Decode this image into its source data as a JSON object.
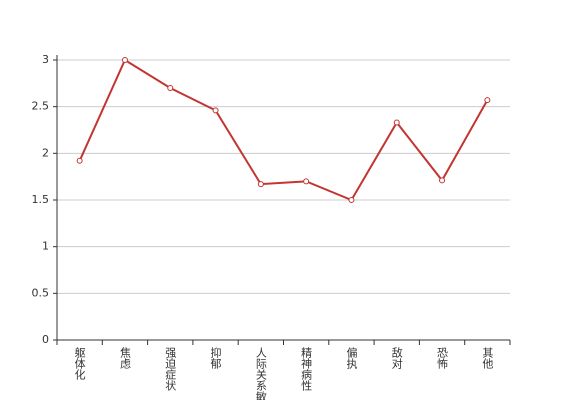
{
  "chart_data": {
    "type": "line",
    "categories": [
      "躯体化",
      "焦虑",
      "强迫症状",
      "抑郁",
      "人际关系敏感",
      "精神病性",
      "偏执",
      "敌对",
      "恐怖",
      "其他"
    ],
    "series": [
      {
        "color": "#c23531",
        "values": [
          1.92,
          3.0,
          2.7,
          2.46,
          1.67,
          1.7,
          1.5,
          2.33,
          1.71,
          2.57
        ]
      }
    ],
    "ylim": [
      0,
      3
    ],
    "yticks": [
      0,
      0.5,
      1,
      1.5,
      2,
      2.5,
      3
    ],
    "grid": true
  }
}
